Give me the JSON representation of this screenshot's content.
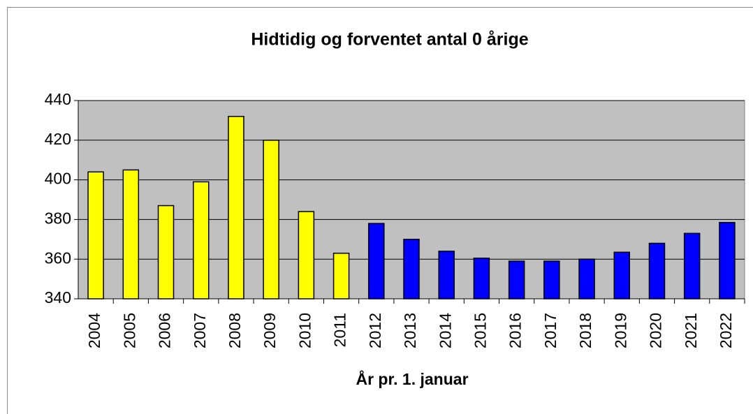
{
  "chart_data": {
    "type": "bar",
    "title": "Hidtidig og forventet antal 0 årige",
    "x_label": "År pr. 1. januar",
    "categories": [
      "2004",
      "2005",
      "2006",
      "2007",
      "2008",
      "2009",
      "2010",
      "2011",
      "2012",
      "2013",
      "2014",
      "2015",
      "2016",
      "2017",
      "2018",
      "2019",
      "2020",
      "2021",
      "2022"
    ],
    "values": [
      404,
      405,
      387,
      399,
      432,
      420,
      384,
      363,
      378,
      370,
      364,
      360.5,
      359,
      359,
      360,
      363.5,
      368,
      373,
      378.5
    ],
    "colors": [
      "#ffff00",
      "#ffff00",
      "#ffff00",
      "#ffff00",
      "#ffff00",
      "#ffff00",
      "#ffff00",
      "#ffff00",
      "#0000ff",
      "#0000ff",
      "#0000ff",
      "#0000ff",
      "#0000ff",
      "#0000ff",
      "#0000ff",
      "#0000ff",
      "#0000ff",
      "#0000ff",
      "#0000ff"
    ],
    "ylim": [
      340,
      440
    ],
    "yticks": [
      340,
      360,
      380,
      400,
      420,
      440
    ],
    "grid": true,
    "plot_background": "#c0c0c0"
  }
}
